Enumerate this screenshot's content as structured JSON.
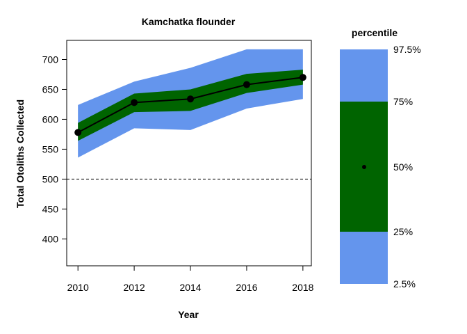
{
  "chart_data": {
    "type": "line",
    "title": "Kamchatka flounder",
    "xlabel": "Year",
    "ylabel": "Total Otoliths Collected",
    "x": [
      2010,
      2012,
      2014,
      2016,
      2018
    ],
    "median": [
      578,
      628,
      634,
      658,
      670
    ],
    "band_25_75": {
      "lower": [
        564,
        612,
        614,
        644,
        658
      ],
      "upper": [
        594,
        643,
        650,
        676,
        683
      ]
    },
    "band_2_5_97_5": {
      "lower": [
        536,
        585,
        582,
        618,
        634
      ],
      "upper": [
        624,
        663,
        686,
        717,
        717
      ]
    },
    "reference_line": 500,
    "xticks": [
      "2010",
      "2012",
      "2014",
      "2016",
      "2018"
    ],
    "yticks": [
      "400",
      "450",
      "500",
      "550",
      "600",
      "650",
      "700"
    ],
    "xlim": [
      2009.6,
      2018.3
    ],
    "ylim": [
      355,
      732
    ],
    "colors": {
      "outer_band": "#6495ED",
      "inner_band": "#006400",
      "line": "#000000"
    },
    "legend": {
      "title": "percentile",
      "labels": [
        "97.5%",
        "75%",
        "50%",
        "25%",
        "2.5%"
      ],
      "placement": "right"
    }
  }
}
